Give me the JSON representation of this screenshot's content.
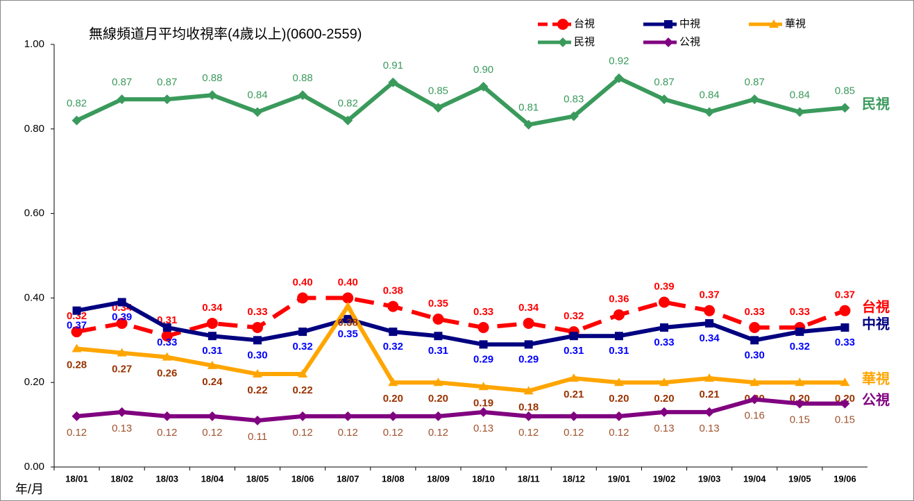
{
  "chart_data": {
    "type": "line",
    "title": "無線頻道月平均收視率(4歲以上)(0600-2559)",
    "x_label": "年/月",
    "categories": [
      "18/01",
      "18/02",
      "18/03",
      "18/04",
      "18/05",
      "18/06",
      "18/07",
      "18/08",
      "18/09",
      "18/10",
      "18/11",
      "18/12",
      "19/01",
      "19/02",
      "19/03",
      "19/04",
      "19/05",
      "19/06"
    ],
    "ylim": [
      0,
      1
    ],
    "yticks": [
      {
        "value": 0,
        "label": "0.00"
      },
      {
        "value": 0.2,
        "label": "0.20"
      },
      {
        "value": 0.4,
        "label": "0.40"
      },
      {
        "value": 0.6,
        "label": "0.60"
      },
      {
        "value": 0.8,
        "label": "0.80"
      },
      {
        "value": 1,
        "label": "1.00"
      }
    ],
    "series": [
      {
        "name": "台視",
        "color": "#ff0000",
        "marker": "circle",
        "dashed": true,
        "values": [
          0.32,
          0.34,
          0.31,
          0.34,
          0.33,
          0.4,
          0.4,
          0.38,
          0.35,
          0.33,
          0.34,
          0.32,
          0.36,
          0.39,
          0.37,
          0.33,
          0.33,
          0.37
        ],
        "value_labels": [
          "0.32",
          "0.34",
          "0.31",
          "0.34",
          "0.33",
          "0.40",
          "0.40",
          "0.38",
          "0.35",
          "0.33",
          "0.34",
          "0.32",
          "0.36",
          "0.39",
          "0.37",
          "0.33",
          "0.33",
          "0.37"
        ]
      },
      {
        "name": "中視",
        "color": "#000080",
        "marker": "square",
        "values": [
          0.37,
          0.39,
          0.33,
          0.31,
          0.3,
          0.32,
          0.35,
          0.32,
          0.31,
          0.29,
          0.29,
          0.31,
          0.31,
          0.33,
          0.34,
          0.3,
          0.32,
          0.33
        ],
        "value_labels": [
          "0.37",
          "0.39",
          "0.33",
          "0.31",
          "0.30",
          "0.32",
          "0.35",
          "0.32",
          "0.31",
          "0.29",
          "0.29",
          "0.31",
          "0.31",
          "0.33",
          "0.34",
          "0.30",
          "0.32",
          "0.33"
        ]
      },
      {
        "name": "華視",
        "color": "#ffa500",
        "marker": "triangle",
        "values": [
          0.28,
          0.27,
          0.26,
          0.24,
          0.22,
          0.22,
          0.38,
          0.2,
          0.2,
          0.19,
          0.18,
          0.21,
          0.2,
          0.2,
          0.21,
          0.2,
          0.2,
          0.2
        ],
        "value_labels": [
          "0.28",
          "0.27",
          "0.26",
          "0.24",
          "0.22",
          "0.22",
          "0.38",
          "0.20",
          "0.20",
          "0.19",
          "0.18",
          "0.21",
          "0.20",
          "0.20",
          "0.21",
          "0.20",
          "0.20",
          "0.20"
        ]
      },
      {
        "name": "民視",
        "color": "#3a9a5c",
        "marker": "diamond",
        "values": [
          0.82,
          0.87,
          0.87,
          0.88,
          0.84,
          0.88,
          0.82,
          0.91,
          0.85,
          0.9,
          0.81,
          0.83,
          0.92,
          0.87,
          0.84,
          0.87,
          0.84,
          0.85
        ],
        "value_labels": [
          "0.82",
          "0.87",
          "0.87",
          "0.88",
          "0.84",
          "0.88",
          "0.82",
          "0.91",
          "0.85",
          "0.90",
          "0.81",
          "0.83",
          "0.92",
          "0.87",
          "0.84",
          "0.87",
          "0.84",
          "0.85"
        ]
      },
      {
        "name": "公視",
        "color": "#800080",
        "marker": "diamond",
        "values": [
          0.12,
          0.13,
          0.12,
          0.12,
          0.11,
          0.12,
          0.12,
          0.12,
          0.12,
          0.13,
          0.12,
          0.12,
          0.12,
          0.13,
          0.13,
          0.16,
          0.15,
          0.15
        ],
        "value_labels": [
          "0.12",
          "0.13",
          "0.12",
          "0.12",
          "0.11",
          "0.12",
          "0.12",
          "0.12",
          "0.12",
          "0.13",
          "0.12",
          "0.12",
          "0.12",
          "0.13",
          "0.13",
          "0.16",
          "0.15",
          "0.15"
        ]
      }
    ]
  }
}
